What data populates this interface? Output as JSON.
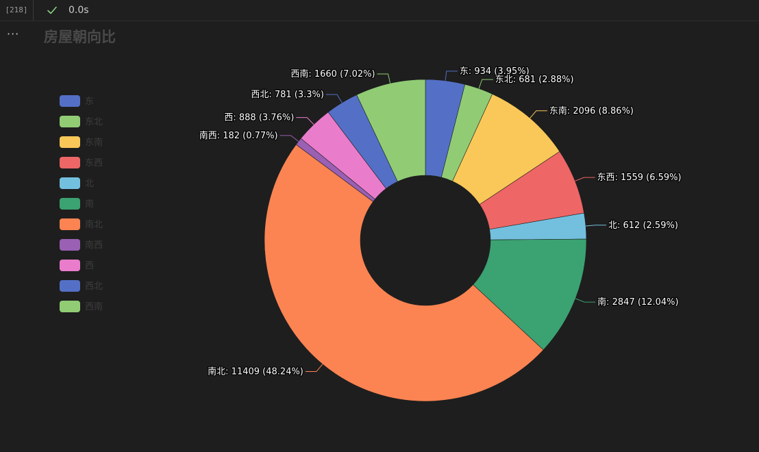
{
  "cell": {
    "execution_count": "[218]",
    "status_icon": "check-icon",
    "exec_time": "0.0s",
    "more_icon": "ellipsis-icon",
    "more_label": "···"
  },
  "colors": {
    "palette": [
      "#5470c6",
      "#91cc75",
      "#fac858",
      "#ee6666",
      "#73c0de",
      "#3ba272",
      "#fc8452",
      "#9a60b4",
      "#ea7ccc",
      "#5470c6",
      "#91cc75"
    ],
    "background": "#1e1e1e",
    "check": "#89d185"
  },
  "chart_data": {
    "type": "pie",
    "variant": "donut",
    "title": "房屋朝向比",
    "legend_position": "left",
    "categories": [
      "东",
      "东北",
      "东南",
      "东西",
      "北",
      "南",
      "南北",
      "南西",
      "西",
      "西北",
      "西南"
    ],
    "values": [
      934,
      681,
      2096,
      1559,
      612,
      2847,
      11409,
      182,
      888,
      781,
      1660
    ],
    "labels": [
      "东: 934 (3.95%)",
      "东北: 681 (2.88%)",
      "东南: 2096 (8.86%)",
      "东西: 1559 (6.59%)",
      "北: 612 (2.59%)",
      "南: 2847 (12.04%)",
      "南北: 11409 (48.24%)",
      "南西: 182 (0.77%)",
      "西: 888 (3.76%)",
      "西北: 781 (3.3%)",
      "西南: 1660 (7.02%)"
    ]
  }
}
